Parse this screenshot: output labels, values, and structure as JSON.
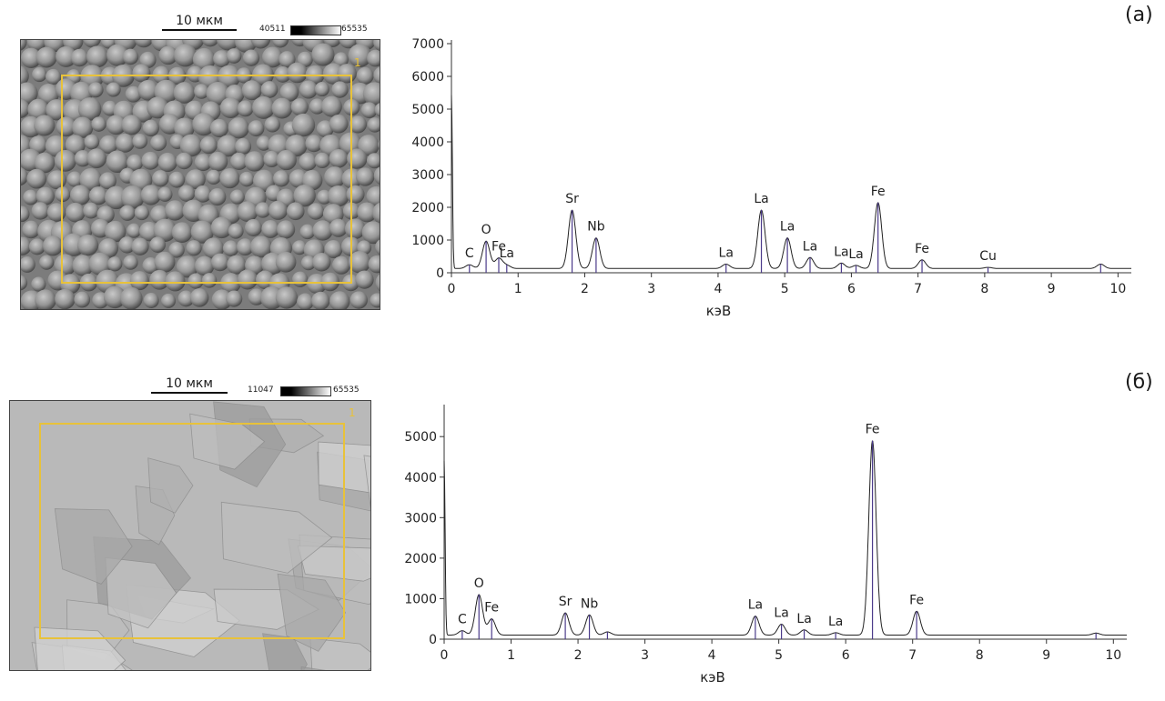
{
  "panels": [
    {
      "letter": "(а)",
      "scale_label": "10 мкм",
      "gradient_min": "40511",
      "gradient_max": "65535",
      "roi_label": "1"
    },
    {
      "letter": "(б)",
      "scale_label": "10 мкм",
      "gradient_min": "11047",
      "gradient_max": "65535",
      "roi_label": "1"
    }
  ],
  "chart_data": [
    {
      "type": "line",
      "xlabel": "кэВ",
      "ylabel": "",
      "xlim": [
        0,
        10.2
      ],
      "ylim": [
        0,
        7000
      ],
      "x_ticks": [
        0,
        1,
        2,
        3,
        4,
        5,
        6,
        7,
        8,
        9,
        10
      ],
      "y_ticks": [
        0,
        1000,
        2000,
        3000,
        4000,
        5000,
        6000,
        7000
      ],
      "grid": false,
      "baseline": 130,
      "zero_spike": 5300,
      "peaks": [
        {
          "label": "C",
          "x": 0.27,
          "y": 180
        },
        {
          "label": "O",
          "x": 0.52,
          "y": 900
        },
        {
          "label": "Fe",
          "x": 0.71,
          "y": 380
        },
        {
          "label": "La",
          "x": 0.83,
          "y": 160
        },
        {
          "label": "Sr",
          "x": 1.81,
          "y": 1850
        },
        {
          "label": "Nb",
          "x": 2.17,
          "y": 1000
        },
        {
          "label": "La",
          "x": 4.12,
          "y": 200
        },
        {
          "label": "La",
          "x": 4.65,
          "y": 1850
        },
        {
          "label": "La",
          "x": 5.04,
          "y": 1000
        },
        {
          "label": "La",
          "x": 5.38,
          "y": 400
        },
        {
          "label": "La",
          "x": 5.85,
          "y": 230
        },
        {
          "label": "La",
          "x": 6.07,
          "y": 160
        },
        {
          "label": "Fe",
          "x": 6.4,
          "y": 2080
        },
        {
          "label": "Fe",
          "x": 7.06,
          "y": 330
        },
        {
          "label": "Cu",
          "x": 8.05,
          "y": 100
        },
        {
          "label": "",
          "x": 9.74,
          "y": 200
        }
      ]
    },
    {
      "type": "line",
      "xlabel": "кэВ",
      "ylabel": "",
      "xlim": [
        0,
        10.2
      ],
      "ylim": [
        0,
        5700
      ],
      "x_ticks": [
        0,
        1,
        2,
        3,
        4,
        5,
        6,
        7,
        8,
        9,
        10
      ],
      "y_ticks": [
        0,
        1000,
        2000,
        3000,
        4000,
        5000
      ],
      "grid": false,
      "baseline": 100,
      "zero_spike": 4300,
      "peaks": [
        {
          "label": "C",
          "x": 0.27,
          "y": 160
        },
        {
          "label": "O",
          "x": 0.52,
          "y": 1050
        },
        {
          "label": "Fe",
          "x": 0.71,
          "y": 450
        },
        {
          "label": "Sr",
          "x": 1.81,
          "y": 600
        },
        {
          "label": "Nb",
          "x": 2.17,
          "y": 550
        },
        {
          "label": "",
          "x": 2.44,
          "y": 130
        },
        {
          "label": "La",
          "x": 4.65,
          "y": 520
        },
        {
          "label": "La",
          "x": 5.04,
          "y": 320
        },
        {
          "label": "La",
          "x": 5.38,
          "y": 180
        },
        {
          "label": "La",
          "x": 5.85,
          "y": 110
        },
        {
          "label": "Fe",
          "x": 6.4,
          "y": 4850
        },
        {
          "label": "Fe",
          "x": 7.06,
          "y": 640
        },
        {
          "label": "",
          "x": 9.74,
          "y": 100
        }
      ]
    }
  ]
}
